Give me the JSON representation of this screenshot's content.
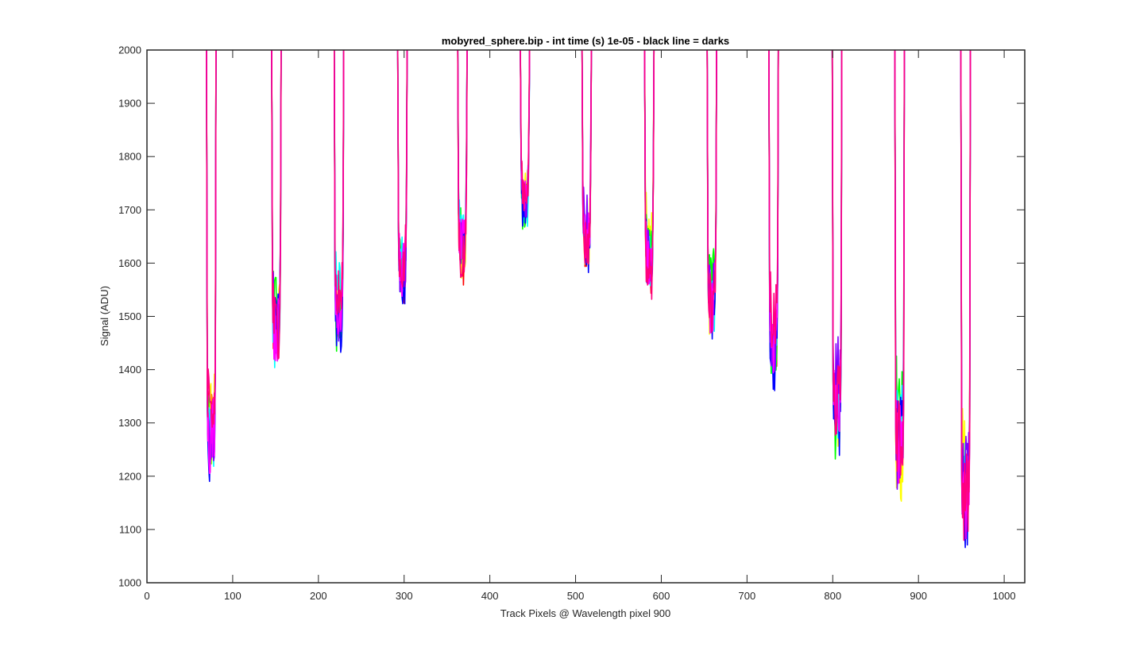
{
  "chart_data": {
    "type": "line",
    "title": "mobyred_sphere.bip - int time (s) 1e-05 - black line = darks",
    "xlabel": "Track Pixels @ Wavelength pixel 900",
    "ylabel": "Signal (ADU)",
    "xlim": [
      0,
      1024
    ],
    "ylim": [
      1000,
      2000
    ],
    "xticks": [
      "0",
      "100",
      "200",
      "300",
      "400",
      "500",
      "600",
      "700",
      "800",
      "900",
      "1000"
    ],
    "yticks": [
      "1000",
      "1100",
      "1200",
      "1300",
      "1400",
      "1500",
      "1600",
      "1700",
      "1800",
      "1900",
      "2000"
    ],
    "grid": false,
    "legend": "none",
    "dips": [
      {
        "center": 75,
        "min": 1170
      },
      {
        "center": 151,
        "min": 1370
      },
      {
        "center": 224,
        "min": 1430
      },
      {
        "center": 298,
        "min": 1495
      },
      {
        "center": 368,
        "min": 1550
      },
      {
        "center": 441,
        "min": 1645
      },
      {
        "center": 513,
        "min": 1565
      },
      {
        "center": 586,
        "min": 1525
      },
      {
        "center": 659,
        "min": 1440
      },
      {
        "center": 731,
        "min": 1345
      },
      {
        "center": 805,
        "min": 1225
      },
      {
        "center": 878,
        "min": 1125
      },
      {
        "center": 955,
        "min": 1060
      }
    ],
    "series_colors": [
      "#ff0000",
      "#ffff00",
      "#00ff00",
      "#00ffff",
      "#0000ff",
      "#8000ff",
      "#ff00ff",
      "#ff0080"
    ],
    "dark_line_color": "#000000"
  }
}
